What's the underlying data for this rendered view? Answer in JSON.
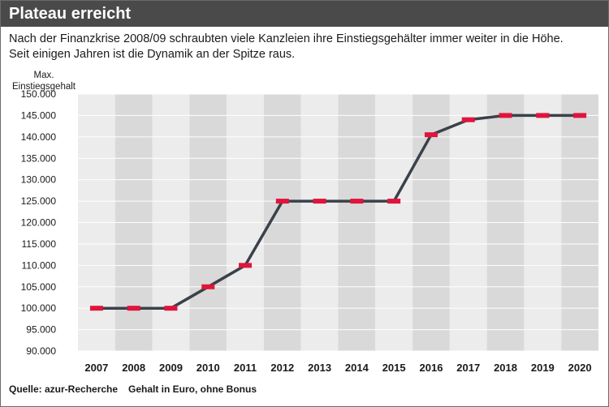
{
  "header": {
    "title": "Plateau erreicht",
    "subtitle_line1": "Nach der Finanzkrise 2008/09 schraubten viele Kanzleien ihre Einstiegsgehälter immer weiter in die Höhe.",
    "subtitle_line2": "Seit einigen Jahren ist die Dynamik an der Spitze raus."
  },
  "footer": {
    "source": "Quelle: azur-Recherche",
    "note": "Gehalt in Euro, ohne Bonus"
  },
  "colors": {
    "header_bg": "#4a4a4a",
    "band_dark": "#d9d9d9",
    "band_light": "#ececec",
    "line": "#3b4149",
    "marker": "#e0143c"
  },
  "chart_data": {
    "type": "line",
    "title": "Plateau erreicht",
    "ylabel": "Max. Einstiegsgehalt",
    "ylabel_lines": [
      "Max.",
      "Einstiegsgehalt"
    ],
    "xlabel": "",
    "ylim": [
      90000,
      150000
    ],
    "y_ticks": [
      90000,
      95000,
      100000,
      105000,
      110000,
      115000,
      120000,
      125000,
      130000,
      135000,
      140000,
      145000,
      150000
    ],
    "y_tick_labels": [
      "90.000",
      "95.000",
      "100.000",
      "105.000",
      "110.000",
      "115.000",
      "120.000",
      "125.000",
      "130.000",
      "135.000",
      "140.000",
      "145.000",
      "150.000"
    ],
    "categories": [
      "2007",
      "2008",
      "2009",
      "2010",
      "2011",
      "2012",
      "2013",
      "2014",
      "2015",
      "2016",
      "2017",
      "2018",
      "2019",
      "2020"
    ],
    "series": [
      {
        "values": [
          100000,
          100000,
          100000,
          105000,
          110000,
          125000,
          125000,
          125000,
          125000,
          140500,
          144000,
          145000,
          145000,
          145000
        ]
      }
    ],
    "grid": true,
    "legend": "none"
  }
}
